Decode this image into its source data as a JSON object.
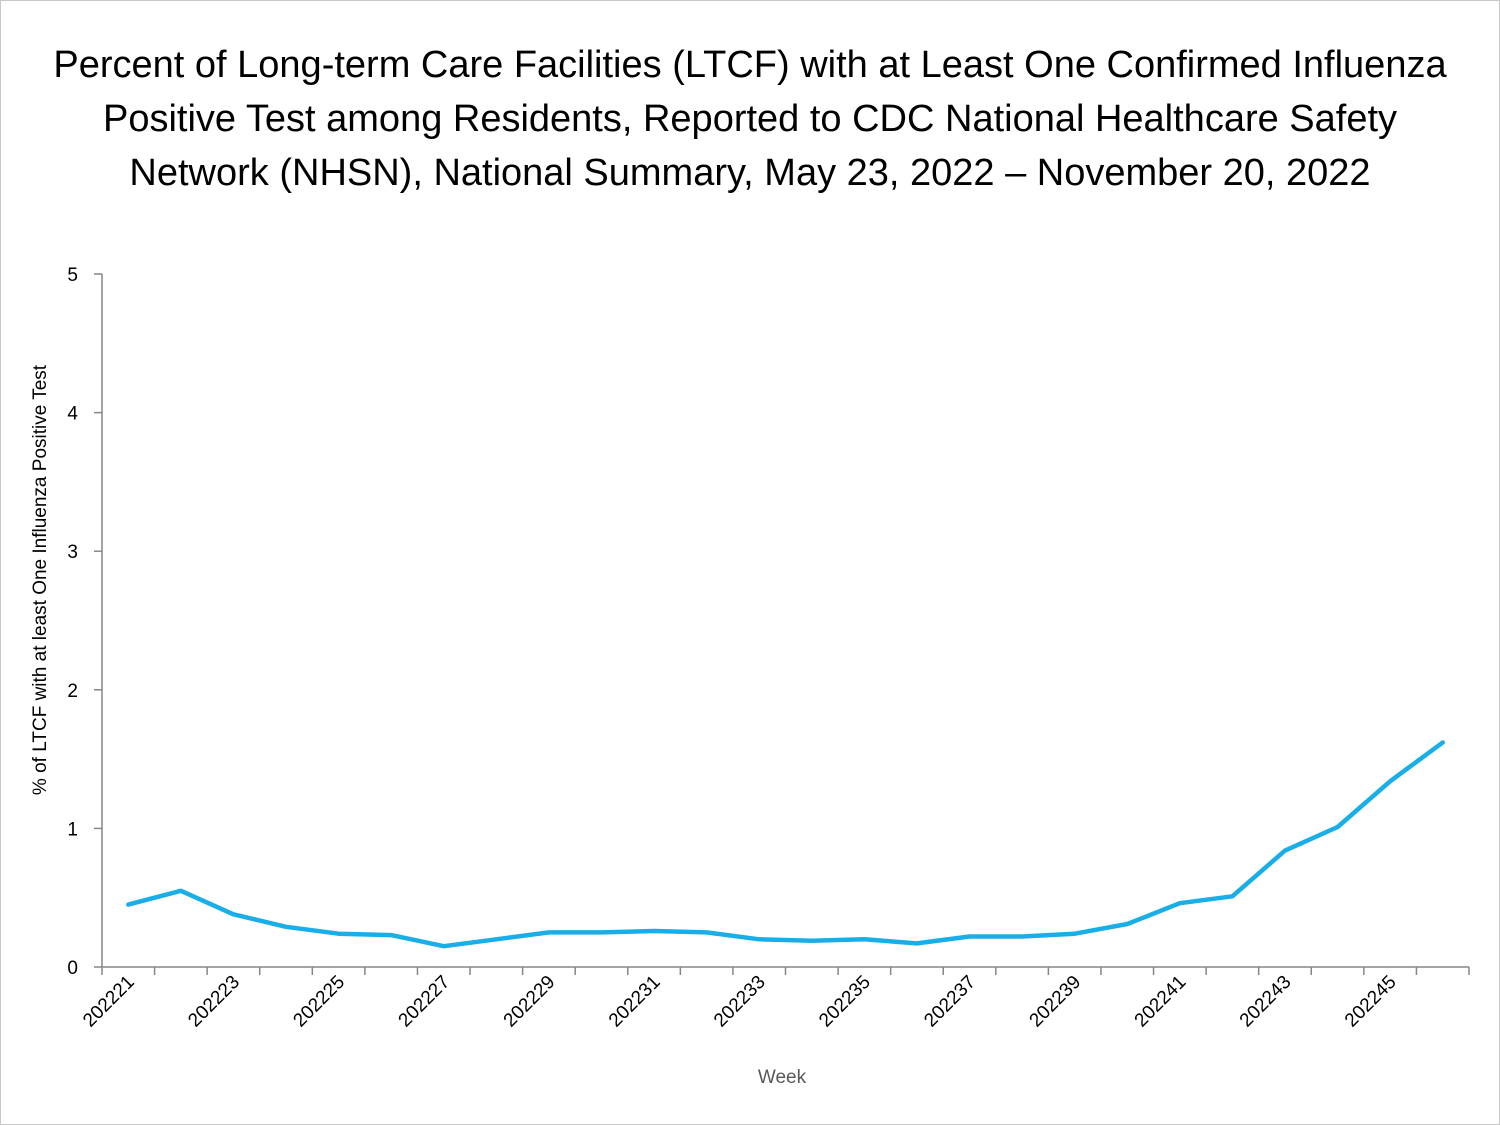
{
  "chart_data": {
    "type": "line",
    "title": "Percent of Long-term Care Facilities (LTCF) with at Least One Confirmed Influenza Positive Test among Residents, Reported to CDC National Healthcare Safety Network (NHSN), National Summary, May 23, 2022 – November 20, 2022",
    "title_lines": [
      "Percent of Long-term Care Facilities (LTCF) with at Least One Confirmed Influenza",
      "Positive Test among Residents, Reported to CDC National Healthcare Safety",
      "Network (NHSN), National Summary, May 23, 2022 – November 20, 2022"
    ],
    "xlabel": "Week",
    "ylabel": "% of LTCF with at least One Influenza Positive Test",
    "ylim": [
      0,
      5
    ],
    "yticks": [
      0,
      1,
      2,
      3,
      4,
      5
    ],
    "x": [
      "202221",
      "202222",
      "202223",
      "202224",
      "202225",
      "202226",
      "202227",
      "202228",
      "202229",
      "202230",
      "202231",
      "202232",
      "202233",
      "202234",
      "202235",
      "202236",
      "202237",
      "202238",
      "202239",
      "202240",
      "202241",
      "202242",
      "202243",
      "202244",
      "202245",
      "202246"
    ],
    "xtick_labels": [
      "202221",
      "202223",
      "202225",
      "202227",
      "202229",
      "202231",
      "202233",
      "202235",
      "202237",
      "202239",
      "202241",
      "202243",
      "202245"
    ],
    "series": [
      {
        "name": "% of LTCF with at least One Influenza Positive Test",
        "color": "#1AAEE8",
        "values": [
          0.45,
          0.55,
          0.38,
          0.29,
          0.24,
          0.23,
          0.15,
          0.2,
          0.25,
          0.25,
          0.26,
          0.25,
          0.2,
          0.19,
          0.2,
          0.17,
          0.22,
          0.22,
          0.24,
          0.31,
          0.46,
          0.51,
          0.84,
          1.01,
          1.34,
          1.62
        ]
      }
    ],
    "grid": false,
    "legend": "none"
  },
  "colors": {
    "axis": "#868686",
    "xlabel_color": "#595959"
  }
}
